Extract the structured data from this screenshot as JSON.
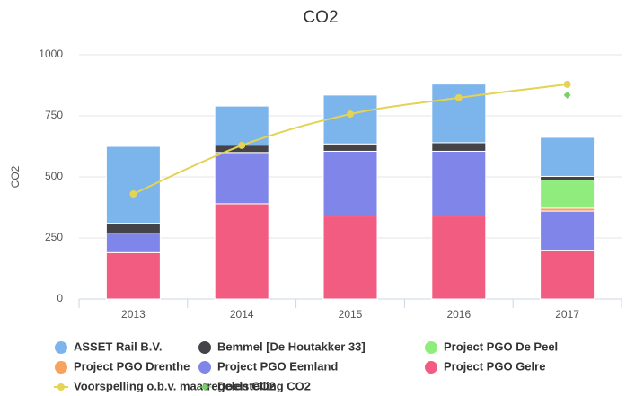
{
  "chart_data": {
    "type": "bar",
    "stacked": true,
    "title": "CO2",
    "y_label": "CO2",
    "categories": [
      "2013",
      "2014",
      "2015",
      "2016",
      "2017"
    ],
    "series": [
      {
        "name": "ASSET Rail B.V.",
        "color": "#7cb5ec",
        "values": [
          315,
          160,
          200,
          240,
          160
        ]
      },
      {
        "name": "Bemmel [De Houtakker 33]",
        "color": "#434348",
        "values": [
          40,
          30,
          30,
          35,
          15
        ]
      },
      {
        "name": "Project PGO De Peel",
        "color": "#90ed7d",
        "values": [
          null,
          null,
          null,
          null,
          115
        ]
      },
      {
        "name": "Project PGO Drenthe",
        "color": "#f7a35c",
        "values": [
          null,
          null,
          null,
          null,
          12
        ]
      },
      {
        "name": "Project PGO Eemland",
        "color": "#8085e9",
        "values": [
          80,
          210,
          265,
          265,
          160
        ]
      },
      {
        "name": "Project PGO Gelre",
        "color": "#f15c80",
        "values": [
          190,
          390,
          340,
          340,
          200
        ]
      },
      {
        "name": "Voorspelling o.b.v. maatregelen CO2",
        "color": "#e4d354",
        "type": "line",
        "values": [
          430,
          629,
          757,
          824,
          879
        ]
      },
      {
        "name": "Doelstelling CO2",
        "color": "#7ccf6c",
        "type": "scatter",
        "values": [
          null,
          null,
          null,
          null,
          835
        ]
      }
    ],
    "ylim": [
      0,
      1000
    ],
    "yticks": [
      0,
      250,
      500,
      750,
      1000
    ],
    "grid": true,
    "legend": "bottom"
  }
}
